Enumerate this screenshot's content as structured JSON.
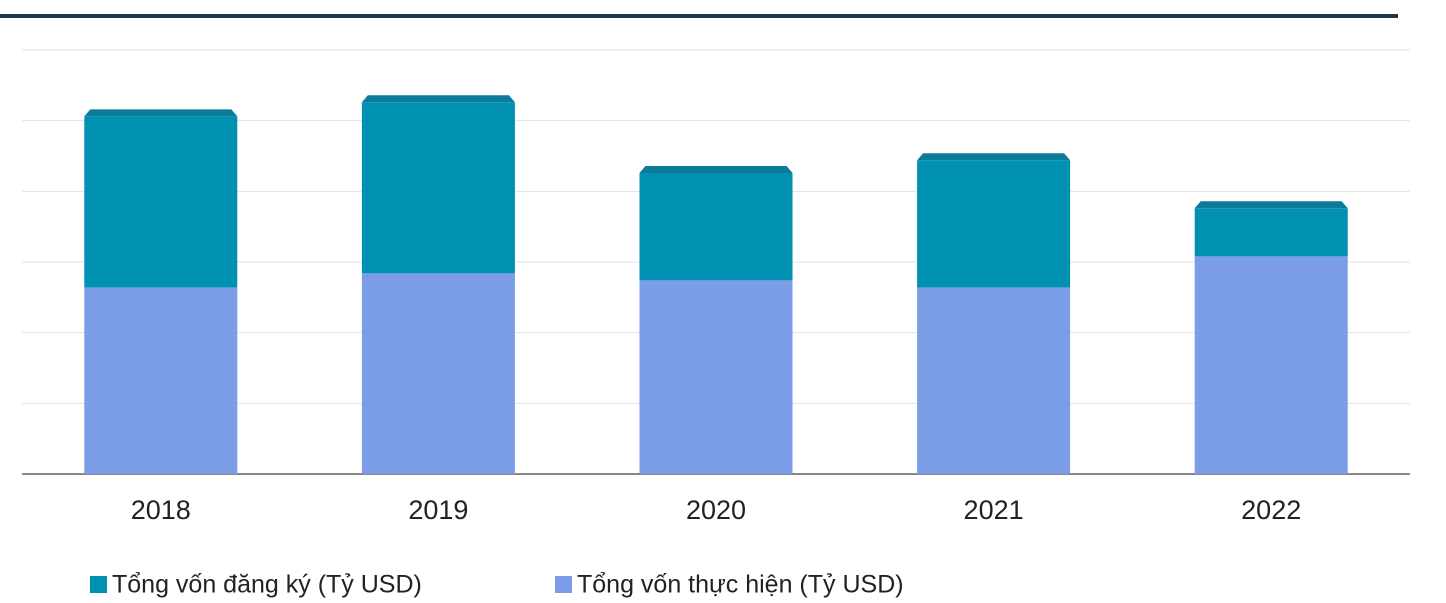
{
  "chart_data": {
    "type": "bar",
    "stacked": true,
    "categories": [
      "2018",
      "2019",
      "2020",
      "2021",
      "2022"
    ],
    "series": [
      {
        "name": "Tổng vốn đăng ký (Tỷ USD)",
        "color": "#0090b2",
        "values": [
          12.1,
          12.1,
          7.6,
          9.0,
          3.4
        ]
      },
      {
        "name": "Tổng vốn thực hiện (Tỷ USD)",
        "color": "#7b9de8",
        "values": [
          13.2,
          14.2,
          13.7,
          13.2,
          15.4
        ]
      }
    ],
    "ylim": [
      0,
      30
    ],
    "yticks": [
      0,
      5,
      10,
      15,
      20,
      25,
      30
    ],
    "grid": true,
    "legend": "bottom"
  }
}
